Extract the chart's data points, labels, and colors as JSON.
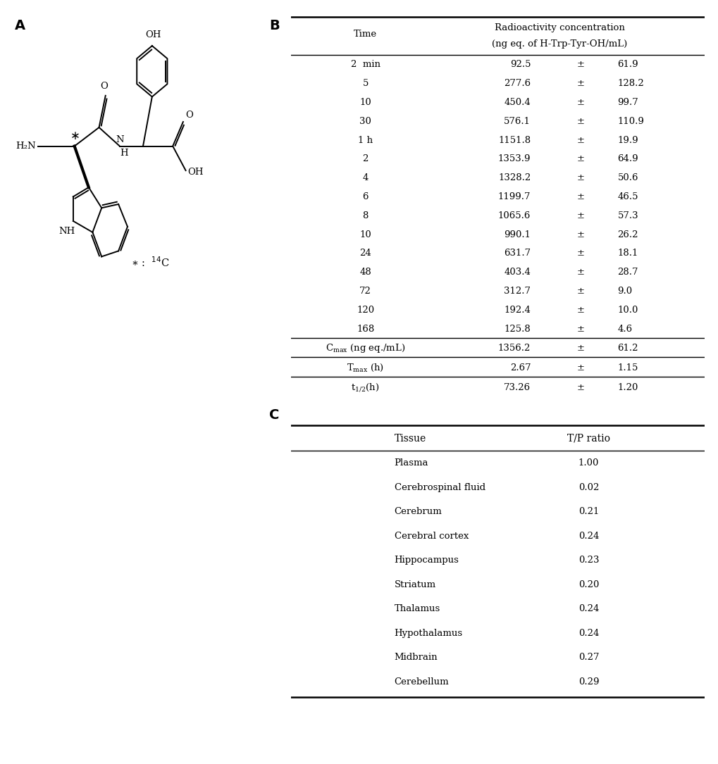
{
  "label_A": "A",
  "label_B": "B",
  "label_C": "C",
  "table_B_col1_header": "Time",
  "table_B_col2_header_line1": "Radioactivity concentration",
  "table_B_col2_header_line2": "(ng eq. of H-Trp-Tyr-OH/mL)",
  "table_B_rows": [
    [
      "2  min",
      "92.5",
      "±",
      "61.9"
    ],
    [
      "5",
      "277.6",
      "±",
      "128.2"
    ],
    [
      "10",
      "450.4",
      "±",
      "99.7"
    ],
    [
      "30",
      "576.1",
      "±",
      "110.9"
    ],
    [
      "1 h",
      "1151.8",
      "±",
      "19.9"
    ],
    [
      "2",
      "1353.9",
      "±",
      "64.9"
    ],
    [
      "4",
      "1328.2",
      "±",
      "50.6"
    ],
    [
      "6",
      "1199.7",
      "±",
      "46.5"
    ],
    [
      "8",
      "1065.6",
      "±",
      "57.3"
    ],
    [
      "10",
      "990.1",
      "±",
      "26.2"
    ],
    [
      "24",
      "631.7",
      "±",
      "18.1"
    ],
    [
      "48",
      "403.4",
      "±",
      "28.7"
    ],
    [
      "72",
      "312.7",
      "±",
      "9.0"
    ],
    [
      "120",
      "192.4",
      "±",
      "10.0"
    ],
    [
      "168",
      "125.8",
      "±",
      "4.6"
    ]
  ],
  "table_B_footer_labels": [
    "C_max_label",
    "T_max_label",
    "t_half_label"
  ],
  "table_B_footer_vals": [
    [
      "1356.2",
      "±",
      "61.2"
    ],
    [
      "2.67",
      "±",
      "1.15"
    ],
    [
      "73.26",
      "±",
      "1.20"
    ]
  ],
  "table_C_header": [
    "Tissue",
    "T/P ratio"
  ],
  "table_C_rows": [
    [
      "Plasma",
      "1.00"
    ],
    [
      "Cerebrospinal fluid",
      "0.02"
    ],
    [
      "Cerebrum",
      "0.21"
    ],
    [
      "Cerebral cortex",
      "0.24"
    ],
    [
      "Hippocampus",
      "0.23"
    ],
    [
      "Striatum",
      "0.20"
    ],
    [
      "Thalamus",
      "0.24"
    ],
    [
      "Hypothalamus",
      "0.24"
    ],
    [
      "Midbrain",
      "0.27"
    ],
    [
      "Cerebellum",
      "0.29"
    ]
  ],
  "bg_color": "#ffffff",
  "text_color": "#000000"
}
